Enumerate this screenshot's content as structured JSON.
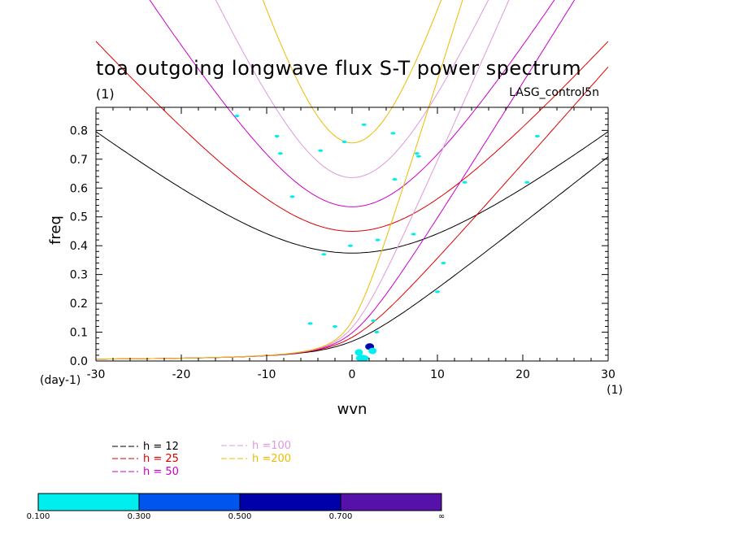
{
  "chart_data": {
    "type": "line",
    "title": "toa outgoing longwave flux S-T power spectrum",
    "subtitle_left": "(1)",
    "subtitle_right": "LASG_control5n",
    "xlabel": "wvn",
    "ylabel": "freq",
    "x_unit": "(1)",
    "y_unit": "(day-1)",
    "xlim": [
      -30,
      30
    ],
    "ylim": [
      0.0,
      0.88
    ],
    "xticks": [
      -30,
      -20,
      -10,
      0,
      10,
      20,
      30
    ],
    "xtick_labels": [
      "-30",
      "-20",
      "-10",
      "0",
      "10",
      "20",
      "30"
    ],
    "yticks": [
      0.0,
      0.1,
      0.2,
      0.3,
      0.4,
      0.5,
      0.6,
      0.7,
      0.8
    ],
    "ytick_labels": [
      "0.0",
      "0.1",
      "0.2",
      "0.3",
      "0.4",
      "0.5",
      "0.6",
      "0.7",
      "0.8"
    ],
    "series": [
      {
        "name": "h = 12",
        "color": "#000000",
        "kind": "dispersion",
        "h": 12
      },
      {
        "name": "h = 25",
        "color": "#dd0000",
        "kind": "dispersion",
        "h": 25
      },
      {
        "name": "h = 50",
        "color": "#cc00cc",
        "kind": "dispersion",
        "h": 50
      },
      {
        "name": "h =100",
        "color": "#dd99dd",
        "kind": "dispersion",
        "h": 100
      },
      {
        "name": "h =200",
        "color": "#eebb00",
        "kind": "dispersion",
        "h": 200
      }
    ],
    "contour_patches": [
      {
        "x": 2.0,
        "y": 0.05,
        "level": "0.300-0.500"
      },
      {
        "x": 2.1,
        "y": 0.05,
        "level": "0.500-0.700"
      },
      {
        "x": 0.8,
        "y": 0.03,
        "level": "0.100-0.300"
      },
      {
        "x": 2.4,
        "y": 0.035,
        "level": "0.100-0.300"
      },
      {
        "x": 1.2,
        "y": 0.01,
        "level": "0.100-0.300"
      },
      {
        "x": 1.4,
        "y": 0.82,
        "level": "0.100-0.300"
      },
      {
        "x": 13.2,
        "y": 0.62,
        "level": "0.100-0.300"
      },
      {
        "x": 7.8,
        "y": 0.71,
        "level": "0.100-0.300"
      },
      {
        "x": 7.6,
        "y": 0.72,
        "level": "0.100-0.300"
      },
      {
        "x": -3.3,
        "y": 0.37,
        "level": "0.100-0.300"
      },
      {
        "x": -8.8,
        "y": 0.78,
        "level": "0.100-0.300"
      },
      {
        "x": -3.7,
        "y": 0.73,
        "level": "0.100-0.300"
      },
      {
        "x": -0.9,
        "y": 0.76,
        "level": "0.100-0.300"
      },
      {
        "x": 4.8,
        "y": 0.79,
        "level": "0.100-0.300"
      },
      {
        "x": 3.0,
        "y": 0.42,
        "level": "0.100-0.300"
      },
      {
        "x": 7.2,
        "y": 0.44,
        "level": "0.100-0.300"
      },
      {
        "x": -0.2,
        "y": 0.4,
        "level": "0.100-0.300"
      },
      {
        "x": 10.7,
        "y": 0.34,
        "level": "0.100-0.300"
      },
      {
        "x": 10.0,
        "y": 0.24,
        "level": "0.100-0.300"
      },
      {
        "x": -4.9,
        "y": 0.13,
        "level": "0.100-0.300"
      },
      {
        "x": -2.0,
        "y": 0.12,
        "level": "0.100-0.300"
      },
      {
        "x": 2.9,
        "y": 0.1,
        "level": "0.100-0.300"
      },
      {
        "x": 21.7,
        "y": 0.78,
        "level": "0.100-0.300"
      },
      {
        "x": 20.5,
        "y": 0.62,
        "level": "0.100-0.300"
      },
      {
        "x": -7.0,
        "y": 0.57,
        "level": "0.100-0.300"
      },
      {
        "x": 5.0,
        "y": 0.63,
        "level": "0.100-0.300"
      },
      {
        "x": 2.5,
        "y": 0.14,
        "level": "0.100-0.300"
      },
      {
        "x": -13.5,
        "y": 0.85,
        "level": "0.100-0.300"
      },
      {
        "x": -8.4,
        "y": 0.72,
        "level": "0.100-0.300"
      }
    ],
    "colorbar": {
      "levels": [
        "0.100",
        "0.300",
        "0.500",
        "0.700",
        "∞"
      ],
      "colors": [
        "#00eeee",
        "#0055ee",
        "#0000aa",
        "#5511aa"
      ]
    },
    "legend_position": "bottom-left",
    "grid": false
  }
}
